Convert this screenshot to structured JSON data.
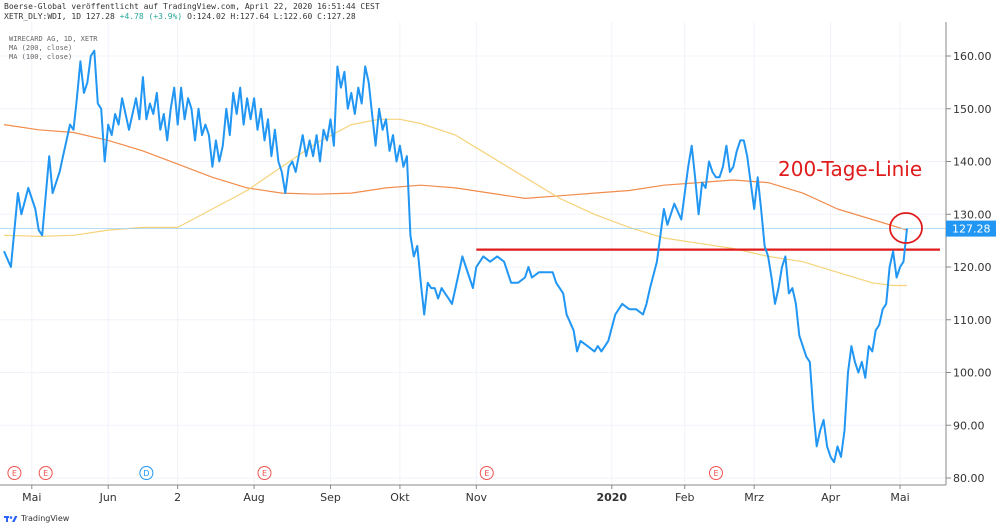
{
  "header": {
    "source_line": "Boerse-Global veröffentlicht auf TradingView.com, April 22, 2020 16:51:44 CEST",
    "symbol": "XETR_DLY:WDI, 1D",
    "last": "127.28",
    "change": "+4.78 (+3.9%)",
    "ohlc": "O:124.02 H:127.64 L:122.60 C:127.28"
  },
  "legend": {
    "instrument": "WIRECARD AG, 1D, XETR",
    "ma200": "MA (200, close)",
    "ma100": "MA (100, close)"
  },
  "annotation": "200-Tage-Linie",
  "footer": {
    "brand": "TradingView"
  },
  "colors": {
    "price": "#2196f3",
    "ma200": "#f28c4b",
    "ma100": "#f5d37a",
    "support": "#e01b1b",
    "price_badge": "#2196f3"
  },
  "chart_data": {
    "type": "line",
    "price_label": "127.28",
    "ylim": [
      78,
      166
    ],
    "yticks": [
      80,
      90,
      100,
      110,
      120,
      130,
      140,
      150,
      160
    ],
    "ytick_labels": [
      "80.00",
      "90.00",
      "100.00",
      "110.00",
      "120.00",
      "130.00",
      "140.00",
      "150.00",
      "160.00"
    ],
    "x_index_range": [
      0,
      260
    ],
    "xticks": [
      {
        "label": "Mai",
        "i": 8,
        "bold": false
      },
      {
        "label": "Jun",
        "i": 30,
        "bold": false
      },
      {
        "label": "2",
        "i": 50,
        "bold": false
      },
      {
        "label": "Aug",
        "i": 72,
        "bold": false
      },
      {
        "label": "Sep",
        "i": 94,
        "bold": false
      },
      {
        "label": "Okt",
        "i": 114,
        "bold": false
      },
      {
        "label": "Nov",
        "i": 136,
        "bold": false
      },
      {
        "label": "2020",
        "i": 175,
        "bold": true
      },
      {
        "label": "Feb",
        "i": 196,
        "bold": false
      },
      {
        "label": "Mrz",
        "i": 216,
        "bold": false
      },
      {
        "label": "Apr",
        "i": 238,
        "bold": false
      },
      {
        "label": "Mai",
        "i": 258,
        "bold": false
      }
    ],
    "events": [
      {
        "i": 3,
        "label": "E",
        "kind": "earnings"
      },
      {
        "i": 12,
        "label": "E",
        "kind": "earnings"
      },
      {
        "i": 41,
        "label": "D",
        "kind": "dividend"
      },
      {
        "i": 75,
        "label": "E",
        "kind": "earnings"
      },
      {
        "i": 139,
        "label": "E",
        "kind": "earnings"
      },
      {
        "i": 205,
        "label": "E",
        "kind": "earnings"
      }
    ],
    "series": [
      {
        "role": "price",
        "points": [
          [
            0,
            123
          ],
          [
            2,
            120
          ],
          [
            4,
            134
          ],
          [
            5,
            130
          ],
          [
            7,
            135
          ],
          [
            9,
            131
          ],
          [
            10,
            127
          ],
          [
            11,
            126
          ],
          [
            13,
            141
          ],
          [
            14,
            134
          ],
          [
            16,
            138
          ],
          [
            17,
            141
          ],
          [
            19,
            147
          ],
          [
            20,
            146
          ],
          [
            21,
            152
          ],
          [
            22,
            159
          ],
          [
            23,
            153
          ],
          [
            24,
            155
          ],
          [
            25,
            160
          ],
          [
            26,
            161
          ],
          [
            27,
            151
          ],
          [
            28,
            150
          ],
          [
            29,
            140
          ],
          [
            30,
            147
          ],
          [
            31,
            145
          ],
          [
            32,
            149
          ],
          [
            33,
            147
          ],
          [
            34,
            152
          ],
          [
            36,
            146
          ],
          [
            38,
            152
          ],
          [
            39,
            148
          ],
          [
            40,
            156
          ],
          [
            41,
            148
          ],
          [
            42,
            151
          ],
          [
            43,
            149
          ],
          [
            44,
            153
          ],
          [
            45,
            146
          ],
          [
            46,
            149
          ],
          [
            47,
            144
          ],
          [
            48,
            150
          ],
          [
            49,
            154
          ],
          [
            50,
            147
          ],
          [
            51,
            154
          ],
          [
            52,
            148
          ],
          [
            53,
            152
          ],
          [
            54,
            150
          ],
          [
            55,
            144
          ],
          [
            56,
            150
          ],
          [
            57,
            145
          ],
          [
            58,
            147
          ],
          [
            59,
            145
          ],
          [
            60,
            139
          ],
          [
            61,
            144
          ],
          [
            62,
            140
          ],
          [
            63,
            143
          ],
          [
            64,
            150
          ],
          [
            65,
            145
          ],
          [
            66,
            153
          ],
          [
            67,
            149
          ],
          [
            68,
            154
          ],
          [
            69,
            147
          ],
          [
            70,
            152
          ],
          [
            71,
            148
          ],
          [
            72,
            152
          ],
          [
            73,
            146
          ],
          [
            74,
            150
          ],
          [
            75,
            144
          ],
          [
            76,
            148
          ],
          [
            77,
            141
          ],
          [
            78,
            146
          ],
          [
            79,
            140
          ],
          [
            80,
            138
          ],
          [
            81,
            134
          ],
          [
            82,
            139
          ],
          [
            83,
            140
          ],
          [
            84,
            138
          ],
          [
            86,
            145
          ],
          [
            87,
            141
          ],
          [
            88,
            144
          ],
          [
            89,
            141
          ],
          [
            90,
            145
          ],
          [
            91,
            140
          ],
          [
            92,
            146
          ],
          [
            93,
            144
          ],
          [
            94,
            148
          ],
          [
            95,
            143
          ],
          [
            96,
            158
          ],
          [
            97,
            154
          ],
          [
            98,
            157
          ],
          [
            99,
            150
          ],
          [
            100,
            153
          ],
          [
            101,
            149
          ],
          [
            102,
            154
          ],
          [
            103,
            151
          ],
          [
            104,
            158
          ],
          [
            105,
            155
          ],
          [
            106,
            149
          ],
          [
            107,
            143
          ],
          [
            108,
            150
          ],
          [
            109,
            146
          ],
          [
            110,
            148
          ],
          [
            111,
            142
          ],
          [
            112,
            145
          ],
          [
            113,
            140
          ],
          [
            114,
            143
          ],
          [
            115,
            139
          ],
          [
            116,
            141
          ],
          [
            117,
            126
          ],
          [
            118,
            122
          ],
          [
            119,
            124
          ],
          [
            120,
            117
          ],
          [
            121,
            111
          ],
          [
            122,
            117
          ],
          [
            123,
            116
          ],
          [
            124,
            116
          ],
          [
            125,
            114
          ],
          [
            126,
            116
          ],
          [
            127,
            115
          ],
          [
            128,
            114
          ],
          [
            129,
            113
          ],
          [
            130,
            116
          ],
          [
            132,
            122
          ],
          [
            133,
            120
          ],
          [
            134,
            118
          ],
          [
            135,
            116
          ],
          [
            136,
            120
          ],
          [
            138,
            122
          ],
          [
            140,
            121
          ],
          [
            142,
            122
          ],
          [
            144,
            121
          ],
          [
            146,
            117
          ],
          [
            148,
            117
          ],
          [
            150,
            118
          ],
          [
            151,
            120
          ],
          [
            152,
            118
          ],
          [
            154,
            119
          ],
          [
            156,
            119
          ],
          [
            158,
            119
          ],
          [
            159,
            117
          ],
          [
            161,
            115
          ],
          [
            162,
            111
          ],
          [
            164,
            108
          ],
          [
            165,
            104
          ],
          [
            166,
            106
          ],
          [
            168,
            105
          ],
          [
            170,
            104
          ],
          [
            171,
            105
          ],
          [
            172,
            104
          ],
          [
            174,
            106
          ],
          [
            176,
            111
          ],
          [
            178,
            113
          ],
          [
            180,
            112
          ],
          [
            182,
            112
          ],
          [
            184,
            111
          ],
          [
            185,
            113
          ],
          [
            186,
            116
          ],
          [
            188,
            121
          ],
          [
            189,
            126
          ],
          [
            190,
            131
          ],
          [
            191,
            128
          ],
          [
            192,
            130
          ],
          [
            193,
            132
          ],
          [
            195,
            129
          ],
          [
            197,
            139
          ],
          [
            198,
            143
          ],
          [
            199,
            137
          ],
          [
            200,
            130
          ],
          [
            201,
            136
          ],
          [
            202,
            135
          ],
          [
            203,
            140
          ],
          [
            204,
            138
          ],
          [
            205,
            137
          ],
          [
            206,
            137
          ],
          [
            207,
            139
          ],
          [
            208,
            143
          ],
          [
            209,
            138
          ],
          [
            210,
            139
          ],
          [
            211,
            142
          ],
          [
            212,
            144
          ],
          [
            213,
            144
          ],
          [
            214,
            141
          ],
          [
            215,
            136
          ],
          [
            216,
            131
          ],
          [
            217,
            137
          ],
          [
            218,
            131
          ],
          [
            219,
            124
          ],
          [
            220,
            122
          ],
          [
            221,
            118
          ],
          [
            222,
            113
          ],
          [
            223,
            116
          ],
          [
            224,
            120
          ],
          [
            225,
            122
          ],
          [
            226,
            115
          ],
          [
            227,
            116
          ],
          [
            228,
            113
          ],
          [
            229,
            107
          ],
          [
            230,
            105
          ],
          [
            231,
            103
          ],
          [
            232,
            102
          ],
          [
            233,
            93
          ],
          [
            234,
            86
          ],
          [
            235,
            89
          ],
          [
            236,
            91
          ],
          [
            237,
            86
          ],
          [
            238,
            84
          ],
          [
            239,
            83
          ],
          [
            240,
            86
          ],
          [
            241,
            84
          ],
          [
            242,
            89
          ],
          [
            243,
            100
          ],
          [
            244,
            105
          ],
          [
            245,
            102
          ],
          [
            246,
            100
          ],
          [
            247,
            102
          ],
          [
            248,
            99
          ],
          [
            249,
            105
          ],
          [
            250,
            104
          ],
          [
            251,
            108
          ],
          [
            252,
            109
          ],
          [
            253,
            112
          ],
          [
            254,
            113
          ],
          [
            255,
            120
          ],
          [
            256,
            123
          ],
          [
            257,
            118
          ],
          [
            258,
            120
          ],
          [
            259,
            121
          ],
          [
            260,
            127.3
          ]
        ]
      },
      {
        "role": "ma200",
        "points": [
          [
            0,
            147
          ],
          [
            10,
            146
          ],
          [
            20,
            145.5
          ],
          [
            30,
            144
          ],
          [
            40,
            142
          ],
          [
            50,
            139.5
          ],
          [
            60,
            137
          ],
          [
            70,
            135
          ],
          [
            80,
            134
          ],
          [
            90,
            133.8
          ],
          [
            100,
            134
          ],
          [
            110,
            135
          ],
          [
            120,
            135.5
          ],
          [
            130,
            135
          ],
          [
            140,
            134
          ],
          [
            150,
            133
          ],
          [
            160,
            133.5
          ],
          [
            170,
            134
          ],
          [
            180,
            134.5
          ],
          [
            190,
            135.5
          ],
          [
            200,
            136
          ],
          [
            210,
            136.5
          ],
          [
            220,
            136
          ],
          [
            230,
            134
          ],
          [
            240,
            131
          ],
          [
            250,
            129
          ],
          [
            260,
            127
          ]
        ]
      },
      {
        "role": "ma100",
        "points": [
          [
            0,
            126
          ],
          [
            10,
            125.8
          ],
          [
            20,
            126
          ],
          [
            30,
            127
          ],
          [
            40,
            127.5
          ],
          [
            50,
            127.5
          ],
          [
            60,
            131
          ],
          [
            70,
            134.5
          ],
          [
            80,
            139
          ],
          [
            90,
            143.5
          ],
          [
            100,
            147
          ],
          [
            108,
            148
          ],
          [
            114,
            148
          ],
          [
            120,
            147.2
          ],
          [
            130,
            145
          ],
          [
            140,
            141
          ],
          [
            150,
            137
          ],
          [
            160,
            133
          ],
          [
            170,
            130
          ],
          [
            180,
            127.5
          ],
          [
            190,
            125.5
          ],
          [
            200,
            124.5
          ],
          [
            210,
            123.5
          ],
          [
            220,
            122
          ],
          [
            230,
            121
          ],
          [
            240,
            119
          ],
          [
            250,
            117
          ],
          [
            256,
            116.5
          ],
          [
            260,
            116.5
          ]
        ]
      }
    ],
    "support_line": {
      "y": 123.3,
      "from_i": 136,
      "to_i": 262
    },
    "last_line": {
      "y": 127.28
    }
  }
}
